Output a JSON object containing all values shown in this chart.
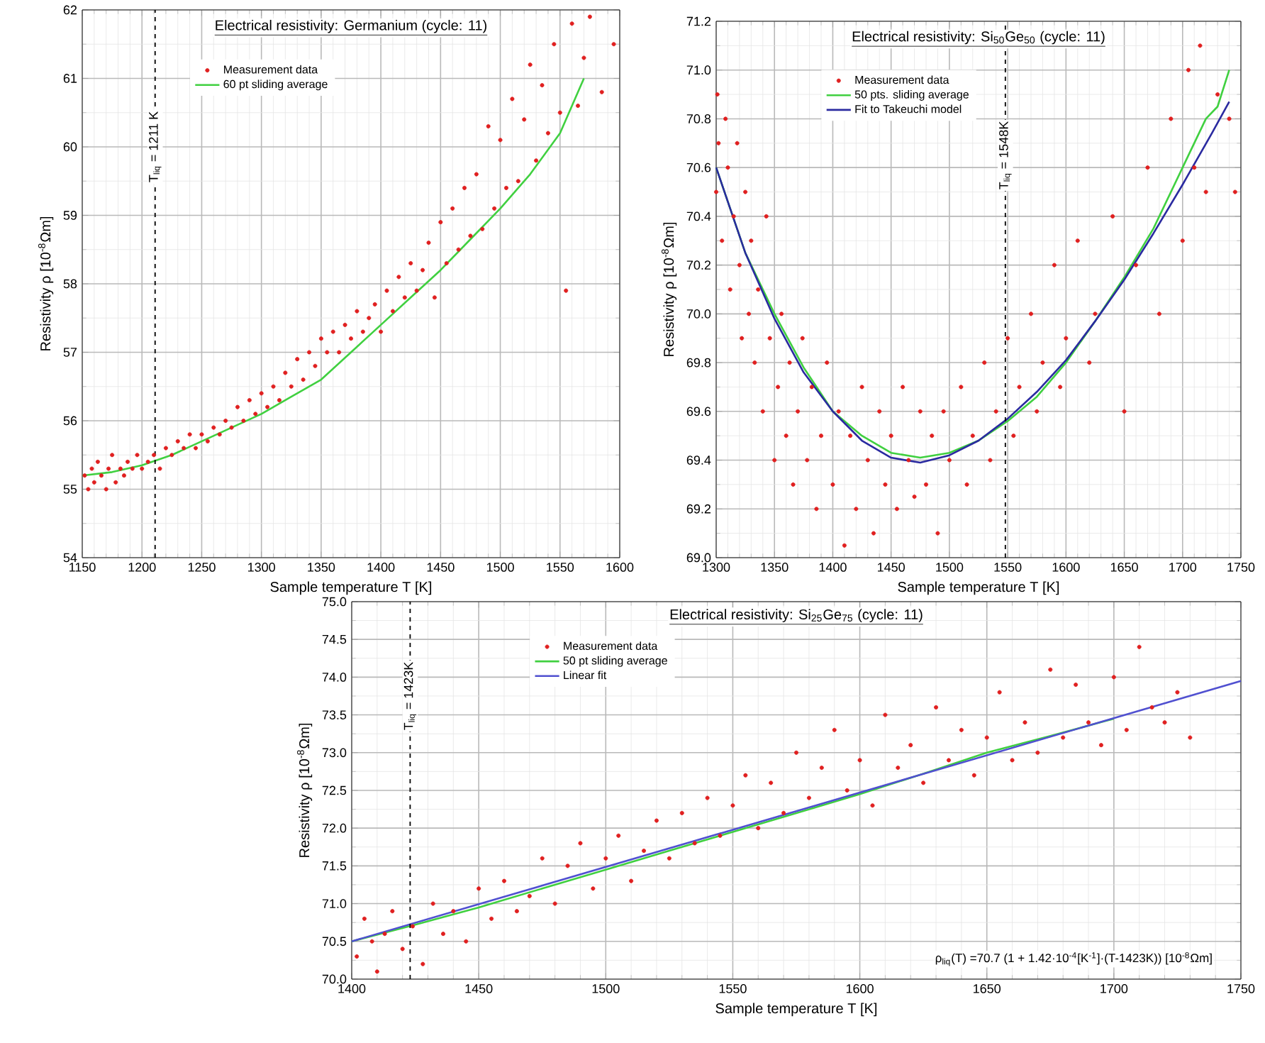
{
  "chart_data": [
    {
      "type": "scatter",
      "title": "Electrical resistivity: Germanium (cycle: 11)",
      "xlabel": "Sample temperature T  [K]",
      "ylabel": "Resistivity ρ [10$^{-8}$Ωm]",
      "xlim": [
        1150,
        1600
      ],
      "ylim": [
        54,
        62
      ],
      "xticks": [
        1150,
        1200,
        1250,
        1300,
        1350,
        1400,
        1450,
        1500,
        1550,
        1600
      ],
      "yticks": [
        54,
        55,
        56,
        57,
        58,
        59,
        60,
        61,
        62
      ],
      "grid": true,
      "legend": "top left",
      "ref_lines": [
        {
          "axis": "x",
          "value": 1211,
          "label": "T$_{liq}$ = 1211 K",
          "line_style": "dashed"
        }
      ],
      "series": [
        {
          "name": "Measurement data",
          "type": "scatter",
          "marker": "circle",
          "color": "#e02020",
          "x": [
            1152,
            1155,
            1158,
            1160,
            1163,
            1166,
            1170,
            1172,
            1175,
            1178,
            1182,
            1185,
            1188,
            1192,
            1196,
            1200,
            1205,
            1210,
            1215,
            1220,
            1225,
            1230,
            1235,
            1240,
            1245,
            1250,
            1255,
            1260,
            1265,
            1270,
            1275,
            1280,
            1285,
            1290,
            1295,
            1300,
            1305,
            1310,
            1315,
            1320,
            1325,
            1330,
            1335,
            1340,
            1345,
            1350,
            1355,
            1360,
            1365,
            1370,
            1375,
            1380,
            1385,
            1390,
            1395,
            1400,
            1405,
            1410,
            1415,
            1420,
            1425,
            1430,
            1435,
            1440,
            1445,
            1450,
            1455,
            1460,
            1465,
            1470,
            1475,
            1480,
            1485,
            1490,
            1495,
            1500,
            1505,
            1510,
            1515,
            1520,
            1525,
            1530,
            1535,
            1540,
            1545,
            1550,
            1555,
            1560,
            1565,
            1570,
            1575,
            1585,
            1595
          ],
          "values": [
            55.2,
            55.0,
            55.3,
            55.1,
            55.4,
            55.2,
            55.0,
            55.3,
            55.5,
            55.1,
            55.3,
            55.2,
            55.4,
            55.3,
            55.5,
            55.3,
            55.4,
            55.5,
            55.3,
            55.6,
            55.5,
            55.7,
            55.6,
            55.8,
            55.6,
            55.8,
            55.7,
            55.9,
            55.8,
            56.0,
            55.9,
            56.2,
            56.0,
            56.3,
            56.1,
            56.4,
            56.2,
            56.5,
            56.3,
            56.7,
            56.5,
            56.9,
            56.6,
            57.0,
            56.8,
            57.2,
            57.0,
            57.3,
            57.0,
            57.4,
            57.2,
            57.6,
            57.3,
            57.5,
            57.7,
            57.3,
            57.9,
            57.6,
            58.1,
            57.8,
            58.3,
            57.9,
            58.2,
            58.6,
            57.8,
            58.9,
            58.3,
            59.1,
            58.5,
            59.4,
            58.7,
            59.6,
            58.8,
            60.3,
            59.1,
            60.1,
            59.4,
            60.7,
            59.5,
            60.4,
            61.2,
            59.8,
            60.9,
            60.2,
            61.5,
            60.5,
            57.9,
            61.8,
            60.6,
            61.3,
            61.9,
            60.8,
            61.5
          ]
        },
        {
          "name": "60 pt sliding average",
          "type": "line",
          "color": "#40d040",
          "x": [
            1150,
            1175,
            1200,
            1225,
            1250,
            1275,
            1300,
            1325,
            1350,
            1375,
            1400,
            1425,
            1450,
            1475,
            1500,
            1525,
            1550,
            1570
          ],
          "values": [
            55.2,
            55.25,
            55.35,
            55.5,
            55.7,
            55.9,
            56.1,
            56.35,
            56.6,
            57.0,
            57.4,
            57.8,
            58.2,
            58.65,
            59.1,
            59.6,
            60.2,
            61.0
          ]
        }
      ]
    },
    {
      "type": "scatter",
      "title": "Electrical resistivity: Si$_{50}$Ge$_{50}$ (cycle: 11)",
      "xlabel": "Sample temperature T  [K]",
      "ylabel": "Resistivity ρ [10$^{-8}$Ωm]",
      "xlim": [
        1300,
        1750
      ],
      "ylim": [
        69.0,
        71.2
      ],
      "xticks": [
        1300,
        1350,
        1400,
        1450,
        1500,
        1550,
        1600,
        1650,
        1700,
        1750
      ],
      "yticks": [
        {
          "value": 69.0,
          "label": "69.0"
        },
        69.2,
        69.4,
        69.6,
        69.8,
        {
          "value": 70.0,
          "label": "70.0"
        },
        70.2,
        70.4,
        70.6,
        70.8,
        {
          "value": 71.0,
          "label": "71.0"
        },
        71.2
      ],
      "grid": true,
      "legend": "top left",
      "ref_lines": [
        {
          "axis": "x",
          "value": 1548,
          "label": "T$_{liq}$ = 1548K",
          "line_style": "dashed"
        }
      ],
      "series": [
        {
          "name": "Measurement data",
          "type": "scatter",
          "marker": "circle",
          "color": "#e02020",
          "x": [
            1301,
            1300,
            1302,
            1305,
            1308,
            1310,
            1312,
            1315,
            1318,
            1320,
            1322,
            1325,
            1328,
            1330,
            1333,
            1336,
            1340,
            1343,
            1346,
            1350,
            1353,
            1356,
            1360,
            1363,
            1366,
            1370,
            1374,
            1378,
            1382,
            1386,
            1390,
            1395,
            1400,
            1405,
            1410,
            1415,
            1420,
            1425,
            1430,
            1435,
            1440,
            1445,
            1450,
            1455,
            1460,
            1465,
            1470,
            1475,
            1480,
            1485,
            1490,
            1495,
            1500,
            1510,
            1515,
            1520,
            1530,
            1535,
            1540,
            1550,
            1555,
            1560,
            1570,
            1575,
            1580,
            1590,
            1595,
            1600,
            1610,
            1620,
            1625,
            1640,
            1650,
            1660,
            1670,
            1680,
            1690,
            1700,
            1705,
            1710,
            1715,
            1720,
            1730,
            1740,
            1745
          ],
          "values": [
            70.9,
            70.5,
            70.7,
            70.3,
            70.8,
            70.6,
            70.1,
            70.4,
            70.7,
            70.2,
            69.9,
            70.5,
            70.0,
            70.3,
            69.8,
            70.1,
            69.6,
            70.4,
            69.9,
            69.4,
            69.7,
            70.0,
            69.5,
            69.8,
            69.3,
            69.6,
            69.9,
            69.4,
            69.7,
            69.2,
            69.5,
            69.8,
            69.3,
            69.6,
            69.05,
            69.5,
            69.2,
            69.7,
            69.4,
            69.1,
            69.6,
            69.3,
            69.5,
            69.2,
            69.7,
            69.4,
            69.25,
            69.6,
            69.3,
            69.5,
            69.1,
            69.6,
            69.4,
            69.7,
            69.3,
            69.5,
            69.8,
            69.4,
            69.6,
            69.9,
            69.5,
            69.7,
            70.0,
            69.6,
            69.8,
            70.2,
            69.7,
            69.9,
            70.3,
            69.8,
            70.0,
            70.4,
            69.6,
            70.2,
            70.6,
            70.0,
            70.8,
            70.3,
            71.0,
            70.6,
            71.1,
            70.5,
            70.9,
            70.8,
            70.5
          ]
        },
        {
          "name": "50 pts. sliding average",
          "type": "line",
          "color": "#40d040",
          "x": [
            1300,
            1325,
            1350,
            1375,
            1400,
            1425,
            1450,
            1475,
            1500,
            1525,
            1550,
            1575,
            1600,
            1625,
            1650,
            1675,
            1700,
            1720,
            1730,
            1740
          ],
          "values": [
            70.6,
            70.25,
            70.0,
            69.78,
            69.6,
            69.5,
            69.43,
            69.41,
            69.43,
            69.48,
            69.56,
            69.66,
            69.8,
            69.97,
            70.15,
            70.35,
            70.6,
            70.8,
            70.85,
            71.0
          ]
        },
        {
          "name": "Fit to Takeuchi model",
          "type": "line",
          "color": "#2a2aa0",
          "x": [
            1300,
            1325,
            1350,
            1375,
            1400,
            1425,
            1450,
            1475,
            1500,
            1525,
            1550,
            1575,
            1600,
            1625,
            1650,
            1675,
            1700,
            1725,
            1740
          ],
          "values": [
            70.6,
            70.25,
            69.98,
            69.76,
            69.6,
            69.48,
            69.41,
            69.39,
            69.42,
            69.48,
            69.57,
            69.68,
            69.81,
            69.97,
            70.14,
            70.33,
            70.53,
            70.74,
            70.87
          ]
        }
      ]
    },
    {
      "type": "scatter",
      "title": "Electrical resistivity: Si$_{25}$Ge$_{75}$ (cycle: 11)",
      "xlabel": "Sample temperature T  [K]",
      "ylabel": "Resistivity ρ [10$^{-8}$Ωm]",
      "xlim": [
        1400,
        1750
      ],
      "ylim": [
        70.0,
        75.0
      ],
      "xticks": [
        1400,
        1450,
        1500,
        1550,
        1600,
        1650,
        1700,
        1750
      ],
      "yticks": [
        {
          "value": 70.0,
          "label": "70.0"
        },
        70.5,
        {
          "value": 71.0,
          "label": "71.0"
        },
        71.5,
        {
          "value": 72.0,
          "label": "72.0"
        },
        72.5,
        {
          "value": 73.0,
          "label": "73.0"
        },
        73.5,
        {
          "value": 74.0,
          "label": "74.0"
        },
        74.5,
        {
          "value": 75.0,
          "label": "75.0"
        }
      ],
      "grid": true,
      "legend": "top left",
      "annotations": [
        "ρ$_{liq}$(T) =70.7 (1 + 1.42·10$^{-4}$[K$^{-1}$]·(T-1423K)) [10$^{-8}$Ωm]"
      ],
      "ref_lines": [
        {
          "axis": "x",
          "value": 1423,
          "label": "T$_{liq}$ = 1423K",
          "line_style": "dashed"
        }
      ],
      "series": [
        {
          "name": "Measurement data",
          "type": "scatter",
          "marker": "circle",
          "color": "#e02020",
          "x": [
            1402,
            1405,
            1408,
            1410,
            1413,
            1416,
            1420,
            1424,
            1428,
            1432,
            1436,
            1440,
            1445,
            1450,
            1455,
            1460,
            1465,
            1470,
            1475,
            1480,
            1485,
            1490,
            1495,
            1500,
            1505,
            1510,
            1515,
            1520,
            1525,
            1530,
            1535,
            1540,
            1545,
            1550,
            1555,
            1560,
            1565,
            1570,
            1575,
            1580,
            1585,
            1590,
            1595,
            1600,
            1605,
            1610,
            1615,
            1620,
            1625,
            1630,
            1635,
            1640,
            1645,
            1650,
            1655,
            1660,
            1665,
            1670,
            1675,
            1680,
            1685,
            1690,
            1695,
            1700,
            1705,
            1710,
            1715,
            1720,
            1725,
            1730
          ],
          "values": [
            70.3,
            70.8,
            70.5,
            70.1,
            70.6,
            70.9,
            70.4,
            70.7,
            70.2,
            71.0,
            70.6,
            70.9,
            70.5,
            71.2,
            70.8,
            71.3,
            70.9,
            71.1,
            71.6,
            71.0,
            71.5,
            71.8,
            71.2,
            71.6,
            71.9,
            71.3,
            71.7,
            72.1,
            71.6,
            72.2,
            71.8,
            72.4,
            71.9,
            72.3,
            72.7,
            72.0,
            72.6,
            72.2,
            73.0,
            72.4,
            72.8,
            73.3,
            72.5,
            72.9,
            72.3,
            73.5,
            72.8,
            73.1,
            72.6,
            73.6,
            72.9,
            73.3,
            72.7,
            73.2,
            73.8,
            72.9,
            73.4,
            73.0,
            74.1,
            73.2,
            73.9,
            73.4,
            73.1,
            74.0,
            73.3,
            74.4,
            73.6,
            73.4,
            73.8,
            73.2
          ]
        },
        {
          "name": "50 pt sliding average",
          "type": "line",
          "color": "#40d040",
          "x": [
            1400,
            1425,
            1450,
            1475,
            1500,
            1525,
            1550,
            1575,
            1600,
            1625,
            1650,
            1675,
            1700
          ],
          "values": [
            70.5,
            70.72,
            70.95,
            71.2,
            71.45,
            71.7,
            71.95,
            72.2,
            72.45,
            72.72,
            73.0,
            73.22,
            73.45
          ]
        },
        {
          "name": "Linear fit",
          "type": "line",
          "color": "#5050d0",
          "x": [
            1400,
            1750
          ],
          "values": [
            70.5,
            73.95
          ]
        }
      ]
    }
  ]
}
